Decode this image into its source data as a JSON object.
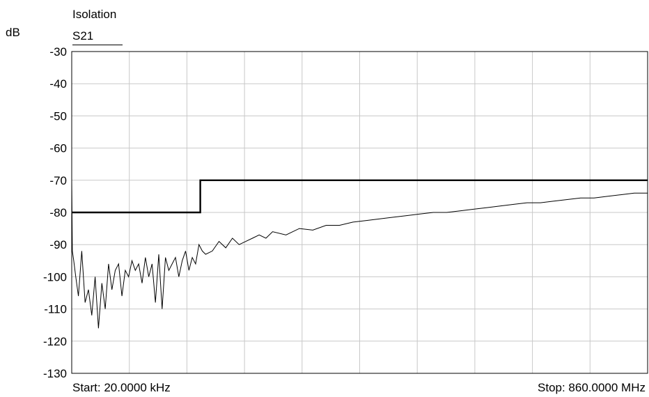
{
  "chart_data": {
    "type": "line",
    "title": "Isolation",
    "legend": "S21",
    "ylabel": "dB",
    "xlabel": "",
    "start_label": "Start: 20.0000 kHz",
    "stop_label": "Stop: 860.0000 MHz",
    "x_range_mhz": [
      0.02,
      860
    ],
    "ylim": [
      -130,
      -30
    ],
    "y_ticks": [
      -30,
      -40,
      -50,
      -60,
      -70,
      -80,
      -90,
      -100,
      -110,
      -120,
      -130
    ],
    "x_grid_divisions": 10,
    "grid": true,
    "limit_line": {
      "x": [
        0.02,
        192,
        192,
        860
      ],
      "y": [
        -80,
        -80,
        -70,
        -70
      ]
    },
    "series": [
      {
        "x": [
          0.02,
          1,
          3,
          6,
          10,
          15,
          20,
          25,
          30,
          35,
          40,
          45,
          50,
          55,
          60,
          65,
          70,
          75,
          80,
          85,
          90,
          95,
          100,
          105,
          110,
          115,
          120,
          125,
          130,
          135,
          140,
          145,
          150,
          155,
          160,
          165,
          170,
          175,
          180,
          185,
          190,
          195,
          200,
          210,
          220,
          230,
          240,
          250,
          260,
          270,
          280,
          290,
          300,
          320,
          340,
          360,
          380,
          400,
          420,
          440,
          460,
          480,
          500,
          520,
          540,
          560,
          580,
          600,
          620,
          640,
          660,
          680,
          700,
          720,
          740,
          760,
          780,
          800,
          820,
          840,
          860
        ],
        "y": [
          -70,
          -92,
          -95,
          -100,
          -106,
          -92,
          -108,
          -104,
          -112,
          -100,
          -116,
          -102,
          -110,
          -96,
          -104,
          -98,
          -96,
          -106,
          -98,
          -100,
          -95,
          -98,
          -96,
          -102,
          -94,
          -100,
          -96,
          -108,
          -93,
          -110,
          -94,
          -98,
          -96,
          -94,
          -100,
          -95,
          -92,
          -98,
          -94,
          -96,
          -90,
          -92,
          -93,
          -92,
          -89,
          -91,
          -88,
          -90,
          -89,
          -88,
          -87,
          -88,
          -86,
          -87,
          -85,
          -85.5,
          -84,
          -84,
          -83,
          -82.5,
          -82,
          -81.5,
          -81,
          -80.5,
          -80,
          -80,
          -79.5,
          -79,
          -78.5,
          -78,
          -77.5,
          -77,
          -77,
          -76.5,
          -76,
          -75.5,
          -75.5,
          -75,
          -74.5,
          -74,
          -74
        ]
      }
    ]
  }
}
